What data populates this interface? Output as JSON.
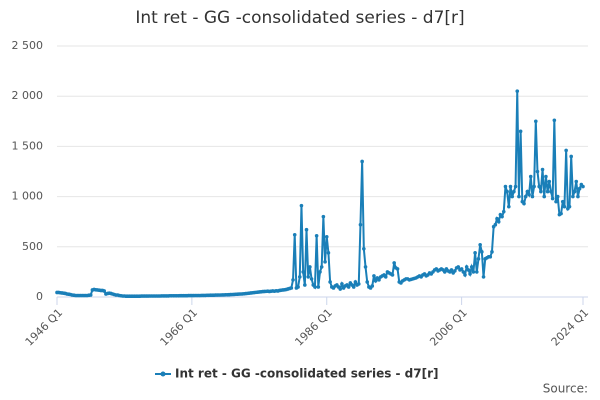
{
  "chart_data": {
    "type": "line",
    "title": "Int ret - GG -consolidated series - d7[r]",
    "source": "Source:",
    "categories": [
      "1946 Q1",
      null,
      null,
      null,
      null,
      null,
      null,
      null,
      null,
      null,
      null,
      null,
      null,
      null,
      null,
      null,
      null,
      null,
      null,
      null,
      null,
      null,
      null,
      null,
      null,
      null,
      null,
      null,
      null,
      null,
      null,
      null,
      null,
      null,
      null,
      null,
      null,
      null,
      null,
      null,
      null,
      null,
      null,
      null,
      null,
      null,
      null,
      null,
      null,
      null,
      null,
      null,
      null,
      null,
      null,
      null,
      null,
      null,
      null,
      null,
      null,
      null,
      null,
      null,
      null,
      null,
      null,
      null,
      null,
      null,
      null,
      null,
      null,
      null,
      null,
      null,
      null,
      null,
      null,
      null,
      "1966 Q1",
      null,
      null,
      null,
      null,
      null,
      null,
      null,
      null,
      null,
      null,
      null,
      null,
      null,
      null,
      null,
      null,
      null,
      null,
      null,
      null,
      null,
      null,
      null,
      null,
      null,
      null,
      null,
      null,
      null,
      null,
      null,
      null,
      null,
      null,
      null,
      null,
      null,
      null,
      null,
      null,
      null,
      null,
      null,
      null,
      null,
      null,
      null,
      null,
      null,
      null,
      null,
      null,
      null,
      null,
      null,
      null,
      null,
      null,
      null,
      null,
      null,
      null,
      null,
      null,
      null,
      null,
      null,
      null,
      null,
      null,
      null,
      null,
      null,
      null,
      null,
      null,
      null,
      null,
      null,
      "1986 Q1",
      null,
      null,
      null,
      null,
      null,
      null,
      null,
      null,
      null,
      null,
      null,
      null,
      null,
      null,
      null,
      null,
      null,
      null,
      null,
      null,
      null,
      null,
      null,
      null,
      null,
      null,
      null,
      null,
      null,
      null,
      null,
      null,
      null,
      null,
      null,
      null,
      null,
      null,
      null,
      null,
      null,
      null,
      null,
      null,
      null,
      null,
      null,
      null,
      null,
      null,
      null,
      null,
      null,
      null,
      null,
      null,
      null,
      null,
      null,
      null,
      null,
      null,
      null,
      null,
      null,
      null,
      null,
      null,
      null,
      null,
      null,
      null,
      null,
      null,
      null,
      null,
      null,
      null,
      null,
      "2006 Q1",
      null,
      null,
      null,
      null,
      null,
      null,
      null,
      null,
      null,
      null,
      null,
      null,
      null,
      null,
      null,
      null,
      null,
      null,
      null,
      null,
      null,
      null,
      null,
      null,
      null,
      null,
      null,
      null,
      null,
      null,
      null,
      null,
      null,
      null,
      null,
      null,
      null,
      null,
      null,
      null,
      null,
      null,
      null,
      null,
      null,
      null,
      null,
      null,
      null,
      null,
      null,
      null,
      null,
      null,
      null,
      null,
      null,
      null,
      null,
      null,
      null,
      null,
      null,
      null,
      null,
      null,
      null,
      null,
      null,
      null,
      null,
      "2024 Q1"
    ],
    "series": [
      {
        "name": "Int ret - GG -consolidated series - d7[r]",
        "color": "#1a7fb8",
        "values": [
          45,
          45,
          42,
          40,
          38,
          35,
          30,
          28,
          25,
          20,
          18,
          15,
          15,
          15,
          15,
          15,
          15,
          15,
          15,
          18,
          20,
          70,
          75,
          72,
          70,
          68,
          65,
          65,
          60,
          30,
          35,
          38,
          35,
          30,
          25,
          20,
          20,
          15,
          12,
          10,
          10,
          8,
          8,
          8,
          8,
          8,
          8,
          8,
          8,
          8,
          9,
          9,
          9,
          9,
          9,
          10,
          10,
          10,
          10,
          10,
          10,
          10,
          11,
          11,
          11,
          11,
          11,
          12,
          12,
          12,
          12,
          12,
          12,
          13,
          13,
          13,
          13,
          13,
          14,
          14,
          14,
          14,
          15,
          15,
          15,
          15,
          16,
          16,
          16,
          17,
          17,
          18,
          18,
          18,
          19,
          19,
          20,
          20,
          21,
          21,
          22,
          22,
          23,
          24,
          25,
          26,
          27,
          28,
          29,
          30,
          31,
          32,
          34,
          36,
          38,
          40,
          42,
          44,
          46,
          48,
          50,
          52,
          54,
          55,
          56,
          58,
          55,
          58,
          60,
          58,
          62,
          60,
          65,
          68,
          70,
          72,
          75,
          80,
          85,
          90,
          170,
          620,
          90,
          100,
          200,
          910,
          250,
          120,
          670,
          200,
          300,
          180,
          120,
          100,
          610,
          100,
          250,
          300,
          800,
          350,
          600,
          440,
          150,
          100,
          90,
          110,
          120,
          100,
          80,
          130,
          90,
          110,
          120,
          100,
          140,
          120,
          100,
          150,
          120,
          130,
          720,
          1350,
          480,
          300,
          150,
          100,
          90,
          110,
          210,
          160,
          190,
          170,
          200,
          210,
          220,
          200,
          250,
          240,
          230,
          220,
          340,
          290,
          280,
          150,
          140,
          160,
          170,
          180,
          180,
          170,
          175,
          180,
          185,
          190,
          200,
          210,
          200,
          220,
          230,
          210,
          220,
          240,
          230,
          250,
          270,
          280,
          260,
          270,
          280,
          270,
          250,
          280,
          260,
          250,
          270,
          240,
          260,
          290,
          300,
          270,
          280,
          250,
          220,
          300,
          270,
          230,
          300,
          250,
          440,
          250,
          380,
          520,
          450,
          200,
          380,
          390,
          400,
          400,
          450,
          700,
          720,
          780,
          750,
          820,
          800,
          850,
          1100,
          1050,
          900,
          1100,
          1000,
          1050,
          1100,
          2050,
          1000,
          1650,
          950,
          930,
          1000,
          1050,
          1020,
          1200,
          1000,
          1100,
          1750,
          1250,
          1100,
          1050,
          1270,
          1000,
          1200,
          1050,
          1150,
          1050,
          980,
          1760,
          950,
          1000,
          820,
          830,
          950,
          900,
          1460,
          880,
          900,
          1400,
          1000,
          1050,
          1150,
          1000,
          1080,
          1120,
          1100
        ]
      }
    ],
    "ylim": [
      0,
      2500
    ],
    "yticks": [
      0,
      500,
      {
        "value": 1000,
        "label": "1 000"
      },
      {
        "value": 1500,
        "label": "1 500"
      },
      {
        "value": 2000,
        "label": "2 000"
      },
      {
        "value": 2500,
        "label": "2 500"
      }
    ],
    "grid": true,
    "legend": "bottom"
  }
}
